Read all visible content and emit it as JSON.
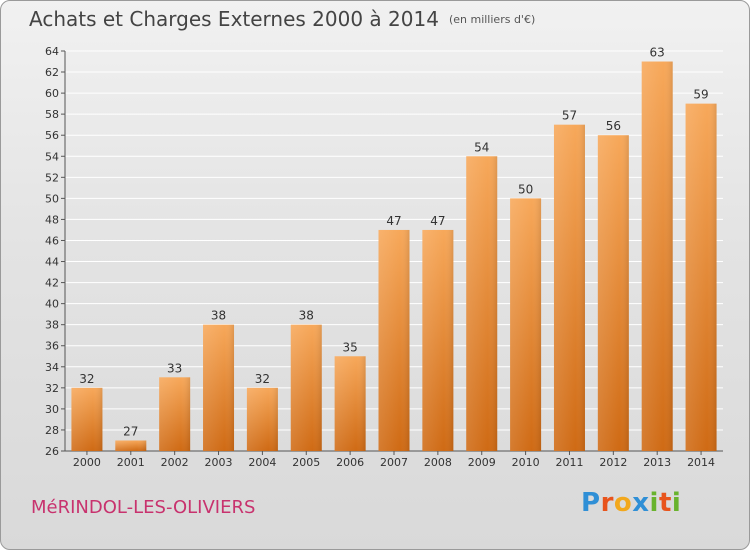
{
  "header": {
    "title": "Achats et Charges Externes 2000 à 2014",
    "unit": "(en milliers d'€)"
  },
  "footer": {
    "commune": "MéRINDOL-LES-OLIVIERS",
    "logo": "Proxiti",
    "logo_colors": [
      "#2f8fd6",
      "#e8541c",
      "#f2a81d",
      "#2f8fd6",
      "#69b32d",
      "#e8541c",
      "#69b32d"
    ]
  },
  "colors": {
    "bar_light": "#f7a85a",
    "bar_dark": "#cf6a14",
    "grid": "#ffffff"
  },
  "chart_data": {
    "type": "bar",
    "title": "Achats et Charges Externes 2000 à 2014",
    "xlabel": "",
    "ylabel": "",
    "categories": [
      "2000",
      "2001",
      "2002",
      "2003",
      "2004",
      "2005",
      "2006",
      "2007",
      "2008",
      "2009",
      "2010",
      "2011",
      "2012",
      "2013",
      "2014"
    ],
    "values": [
      32,
      27,
      33,
      38,
      32,
      38,
      35,
      47,
      47,
      54,
      50,
      57,
      56,
      63,
      59
    ],
    "ylim": [
      26,
      64
    ],
    "yticks": [
      26,
      28,
      30,
      32,
      34,
      36,
      38,
      40,
      42,
      44,
      46,
      48,
      50,
      52,
      54,
      56,
      58,
      60,
      62,
      64
    ],
    "grid": true
  }
}
